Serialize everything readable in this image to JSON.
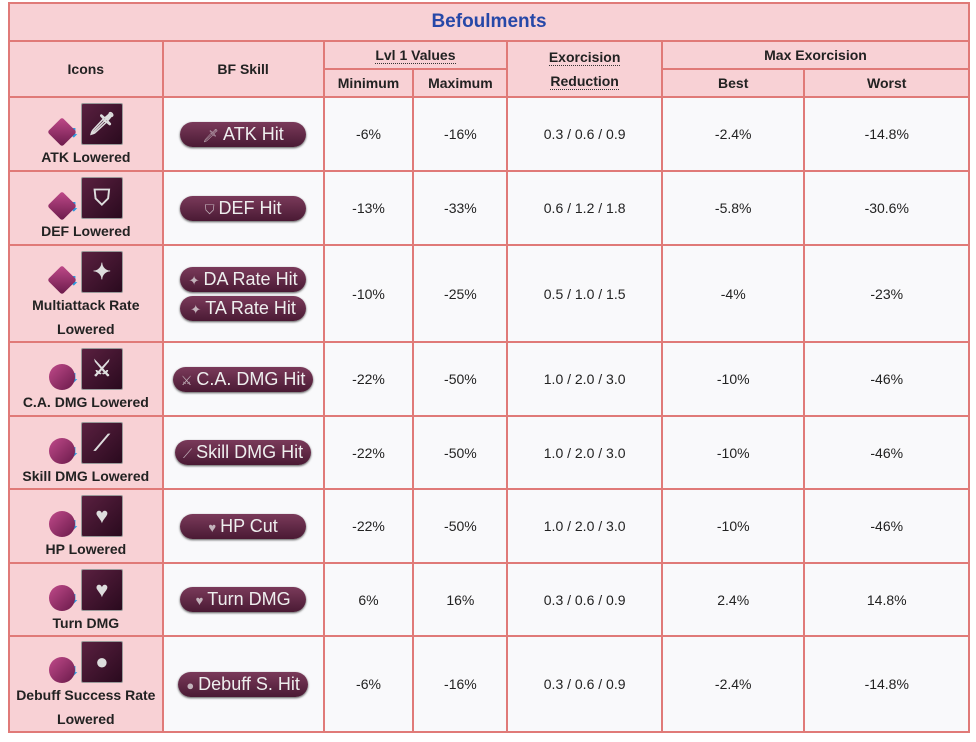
{
  "title": "Befoulments",
  "headers": {
    "icons": "Icons",
    "bf_skill": "BF Skill",
    "lvl1": "Lvl 1 Values",
    "minimum": "Minimum",
    "maximum": "Maximum",
    "exorcision": "Exorcision",
    "reduction": "Reduction",
    "max_exorcision": "Max Exorcision",
    "best": "Best",
    "worst": "Worst"
  },
  "rows": [
    {
      "name": "ATK Lowered",
      "skills": [
        "ATK Hit"
      ],
      "icon": "sword-icon",
      "min": "-6%",
      "max": "-16%",
      "red": "0.3 / 0.6 / 0.9",
      "best": "-2.4%",
      "worst": "-14.8%"
    },
    {
      "name": "DEF Lowered",
      "skills": [
        "DEF Hit"
      ],
      "icon": "shield-icon",
      "min": "-13%",
      "max": "-33%",
      "red": "0.6 / 1.2 / 1.8",
      "best": "-5.8%",
      "worst": "-30.6%"
    },
    {
      "name": "Multiattack Rate Lowered",
      "skills": [
        "DA Rate Hit",
        "TA Rate Hit"
      ],
      "icon": "sparkle-icon",
      "min": "-10%",
      "max": "-25%",
      "red": "0.5 / 1.0 / 1.5",
      "best": "-4%",
      "worst": "-23%"
    },
    {
      "name": "C.A. DMG Lowered",
      "skills": [
        "C.A. DMG Hit"
      ],
      "icon": "crossed-swords-icon",
      "min": "-22%",
      "max": "-50%",
      "red": "1.0 / 2.0 / 3.0",
      "best": "-10%",
      "worst": "-46%"
    },
    {
      "name": "Skill DMG Lowered",
      "skills": [
        "Skill DMG Hit"
      ],
      "icon": "claw-icon",
      "min": "-22%",
      "max": "-50%",
      "red": "1.0 / 2.0 / 3.0",
      "best": "-10%",
      "worst": "-46%"
    },
    {
      "name": "HP Lowered",
      "skills": [
        "HP Cut"
      ],
      "icon": "broken-heart-icon",
      "min": "-22%",
      "max": "-50%",
      "red": "1.0 / 2.0 / 3.0",
      "best": "-10%",
      "worst": "-46%"
    },
    {
      "name": "Turn DMG",
      "skills": [
        "Turn DMG"
      ],
      "icon": "broken-heart-icon",
      "min": "6%",
      "max": "16%",
      "red": "0.3 / 0.6 / 0.9",
      "best": "2.4%",
      "worst": "14.8%"
    },
    {
      "name": "Debuff Success Rate Lowered",
      "skills": [
        "Debuff S. Hit"
      ],
      "icon": "bubbles-icon",
      "min": "-6%",
      "max": "-16%",
      "red": "0.3 / 0.6 / 0.9",
      "best": "-2.4%",
      "worst": "-14.8%"
    }
  ]
}
